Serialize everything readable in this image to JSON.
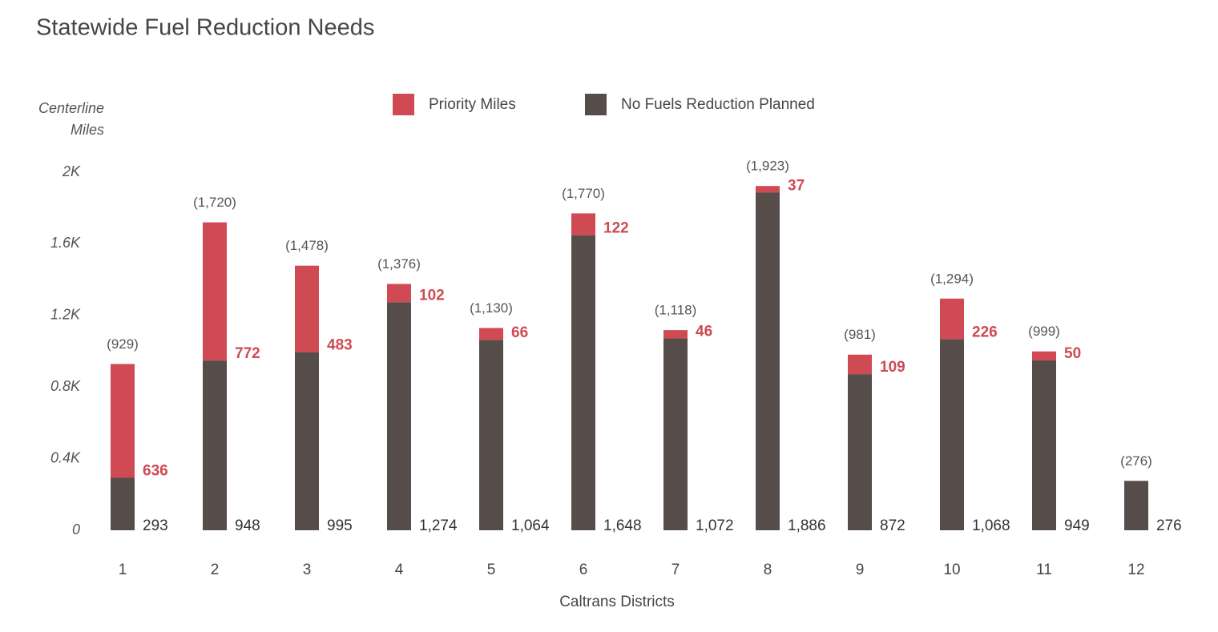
{
  "chart_data": {
    "type": "stacked_bar",
    "title": "Statewide Fuel Reduction Needs",
    "ylabel": "Centerline Miles",
    "xlabel": "Caltrans Districts",
    "categories": [
      "1",
      "2",
      "3",
      "4",
      "5",
      "6",
      "7",
      "8",
      "9",
      "10",
      "11",
      "12"
    ],
    "series": [
      {
        "name": "No Fuels Reduction Planned",
        "color": "#564d4a",
        "values": [
          293,
          948,
          995,
          1274,
          1064,
          1648,
          1072,
          1886,
          872,
          1068,
          949,
          276
        ],
        "value_labels": [
          "293",
          "948",
          "995",
          "1,274",
          "1,064",
          "1,648",
          "1,072",
          "1,886",
          "872",
          "1,068",
          "949",
          "276"
        ]
      },
      {
        "name": "Priority Miles",
        "color": "#cf4a53",
        "values": [
          636,
          772,
          483,
          102,
          66,
          122,
          46,
          37,
          109,
          226,
          50,
          null
        ]
      }
    ],
    "totals": {
      "values": [
        929,
        1720,
        1478,
        1376,
        1130,
        1770,
        1118,
        1923,
        981,
        1294,
        999,
        276
      ],
      "value_labels": [
        "(929)",
        "(1,720)",
        "(1,478)",
        "(1,376)",
        "(1,130)",
        "(1,770)",
        "(1,118)",
        "(1,923)",
        "(981)",
        "(1,294)",
        "(999)",
        "(276)"
      ]
    },
    "ylim": [
      0,
      2000
    ],
    "yticks": [
      0,
      {
        "value": 400,
        "label": "0.4K"
      },
      {
        "value": 800,
        "label": "0.8K"
      },
      {
        "value": 1200,
        "label": "1.2K"
      },
      {
        "value": 1600,
        "label": "1.6K"
      },
      {
        "value": 2000,
        "label": "2K"
      }
    ],
    "legend": "top"
  }
}
